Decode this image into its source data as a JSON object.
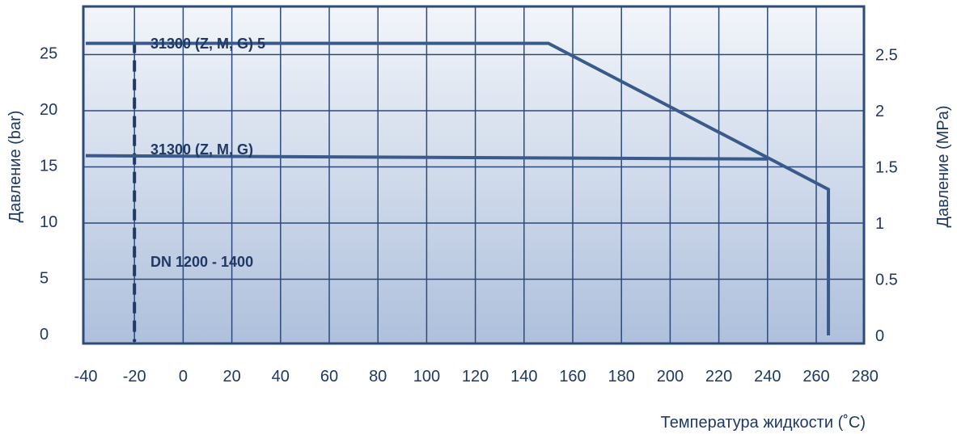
{
  "chart_data": {
    "type": "line",
    "title": "",
    "xlabel": "Температура жидкости (˚C)",
    "ylabel": "Давление (bar)",
    "ylabel_right": "Давление (MPa)",
    "xlim": [
      -40,
      280
    ],
    "ylim": [
      0,
      30
    ],
    "grid": true,
    "x_ticks": [
      "-40",
      "-20",
      "0",
      "20",
      "40",
      "60",
      "80",
      "100",
      "120",
      "140",
      "160",
      "180",
      "200",
      "220",
      "240",
      "260",
      "280"
    ],
    "y_ticks_left": [
      "0",
      "5",
      "10",
      "15",
      "20",
      "25"
    ],
    "y_ticks_right": [
      "0",
      "0.5",
      "1",
      "1.5",
      "2",
      "2.5"
    ],
    "series": [
      {
        "name": "31300 (Z, M, G) 5",
        "x": [
          -40,
          150,
          265,
          265
        ],
        "y": [
          26,
          26,
          13,
          0
        ]
      },
      {
        "name": "31300 (Z, M, G)",
        "x": [
          -40,
          240
        ],
        "y": [
          16,
          15.7
        ]
      }
    ],
    "reference_lines": [
      {
        "type": "vertical-dashed",
        "x": -20
      }
    ],
    "annotations": [
      "DN 1200 - 1400"
    ],
    "colors": {
      "line": "#3a5a8c",
      "frame": "#2c4a7c",
      "grid": "#2c4a7c",
      "text": "#1f3864",
      "bg_top": "#f2f5fa",
      "bg_bottom": "#aec0dc"
    }
  }
}
